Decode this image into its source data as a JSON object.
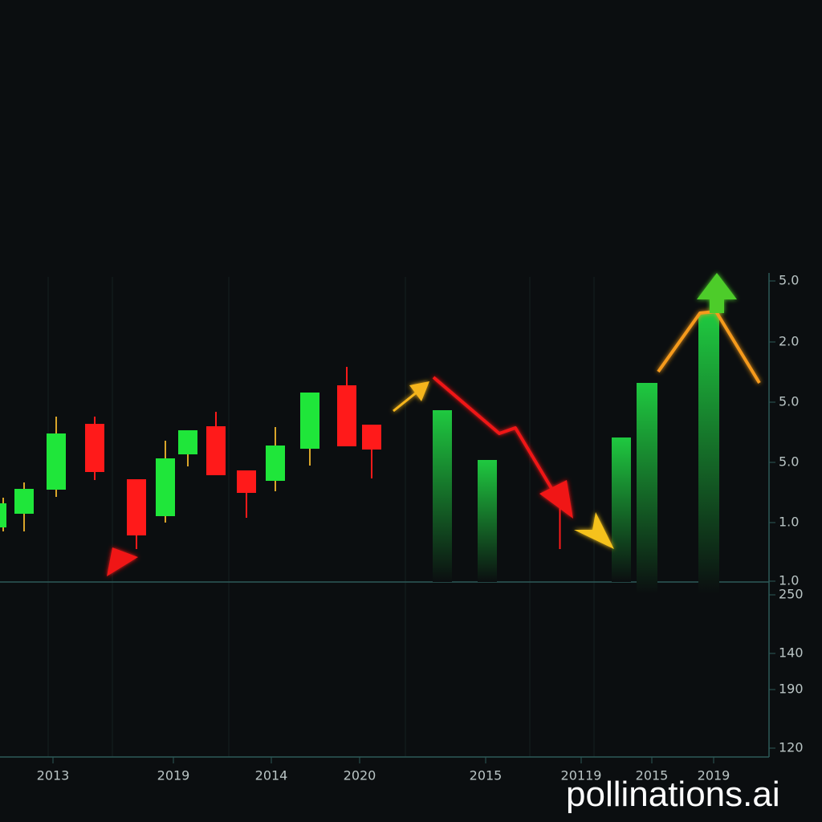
{
  "y_axis_labels": [
    "5.0",
    "2.0",
    "5.0",
    "5.0",
    "1.0",
    "1.0",
    "250",
    "140",
    "190",
    "120"
  ],
  "x_axis_labels": [
    "2013",
    "2019",
    "2014",
    "2020",
    "2015",
    "20119",
    "2015",
    "2019"
  ],
  "watermark": "pollinations.ai"
}
